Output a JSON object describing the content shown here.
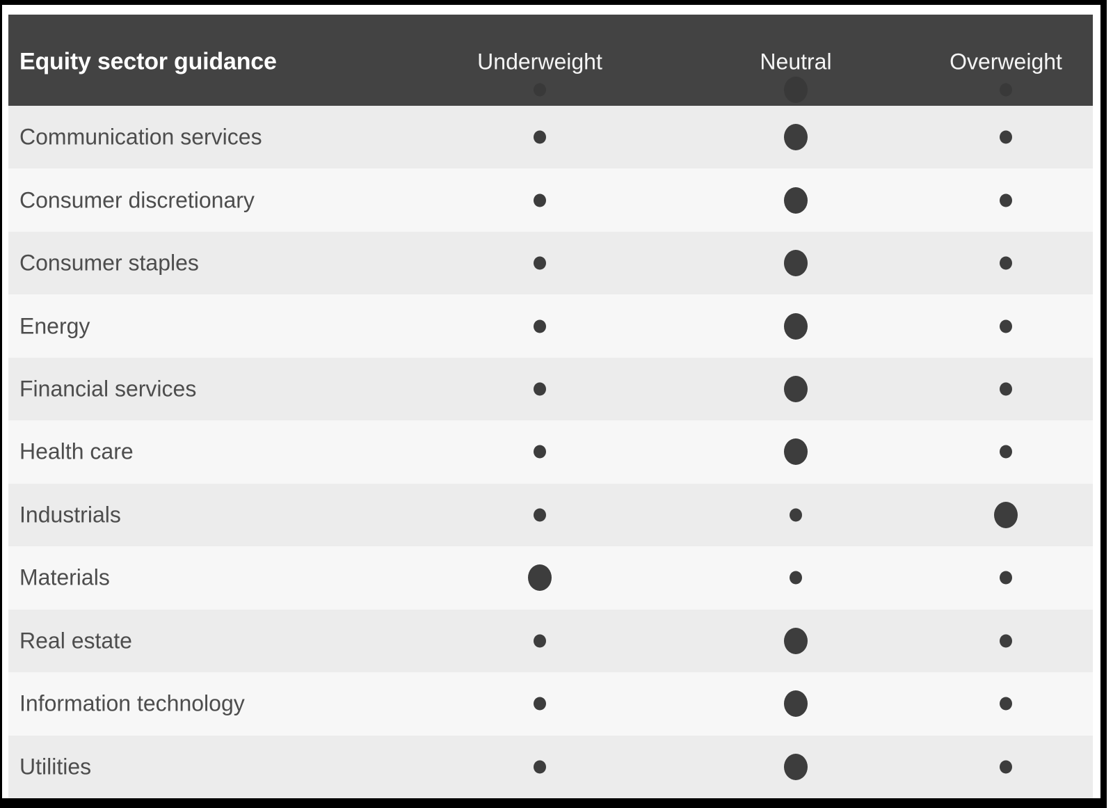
{
  "chart_data": {
    "type": "table",
    "title": "Equity sector guidance",
    "columns": [
      "Underweight",
      "Neutral",
      "Overweight"
    ],
    "rows": [
      {
        "sector": "Communication services",
        "rating": "Neutral"
      },
      {
        "sector": "Consumer discretionary",
        "rating": "Neutral"
      },
      {
        "sector": "Consumer staples",
        "rating": "Neutral"
      },
      {
        "sector": "Energy",
        "rating": "Neutral"
      },
      {
        "sector": "Financial services",
        "rating": "Neutral"
      },
      {
        "sector": "Health care",
        "rating": "Neutral"
      },
      {
        "sector": "Industrials",
        "rating": "Overweight"
      },
      {
        "sector": "Materials",
        "rating": "Underweight"
      },
      {
        "sector": "Real estate",
        "rating": "Neutral"
      },
      {
        "sector": "Information technology",
        "rating": "Neutral"
      },
      {
        "sector": "Utilities",
        "rating": "Neutral"
      }
    ],
    "dot_semantics": "large dot marks the current guidance rating for the sector; small dots mark the other ratings"
  },
  "colors": {
    "frame": "#000000",
    "header_bg": "#434343",
    "title": "#ffffff",
    "column_header": "#f5f5f5",
    "row_dark": "#ececec",
    "row_light": "#f7f7f7",
    "label": "#4d4d4d",
    "dot": "#3d3d3d"
  }
}
